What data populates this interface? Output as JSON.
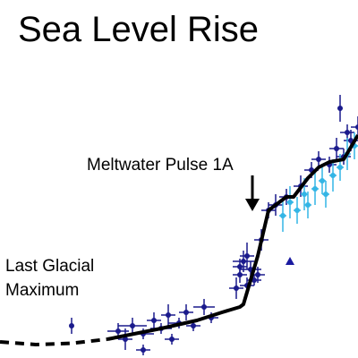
{
  "chart_data": {
    "type": "scatter",
    "title": "Sea Level Rise",
    "xlabel": "",
    "ylabel": "",
    "xlim": [
      0,
      100
    ],
    "ylim": [
      0,
      100
    ],
    "grid": false,
    "annotations": [
      "Meltwater Pulse 1A",
      "Last Glacial Maximum"
    ],
    "colors": {
      "curve": "#000000",
      "dark_points": "#1a1a8c",
      "light_points": "#33b5e5",
      "triangle": "#1a1aa0"
    },
    "curve_dashed": {
      "x": [
        0,
        10,
        20,
        30
      ],
      "y": [
        6,
        5,
        5.5,
        7
      ]
    },
    "curve_solid": {
      "x": [
        30,
        45,
        55,
        62,
        67,
        68,
        72,
        75,
        80,
        82,
        86,
        89,
        92,
        96,
        100
      ],
      "y": [
        7,
        11,
        14,
        17,
        19,
        20,
        38,
        55,
        60,
        60,
        67,
        71,
        73,
        74,
        83
      ]
    },
    "series": [
      {
        "color": "dark",
        "points": [
          {
            "x": 33,
            "y": 10,
            "ex": 3,
            "ey": 3
          },
          {
            "x": 35,
            "y": 7,
            "ex": 2,
            "ey": 4
          },
          {
            "x": 37,
            "y": 12,
            "ex": 4,
            "ey": 3
          },
          {
            "x": 40,
            "y": 9,
            "ex": 3,
            "ey": 2
          },
          {
            "x": 43,
            "y": 14,
            "ex": 2,
            "ey": 3
          },
          {
            "x": 45,
            "y": 11,
            "ex": 3,
            "ey": 2
          },
          {
            "x": 47,
            "y": 16,
            "ex": 2,
            "ey": 4
          },
          {
            "x": 50,
            "y": 13,
            "ex": 3,
            "ey": 2
          },
          {
            "x": 52,
            "y": 17,
            "ex": 2,
            "ey": 3
          },
          {
            "x": 54,
            "y": 12,
            "ex": 2,
            "ey": 2
          },
          {
            "x": 57,
            "y": 19,
            "ex": 3,
            "ey": 3
          },
          {
            "x": 59,
            "y": 15,
            "ex": 2,
            "ey": 2
          },
          {
            "x": 20,
            "y": 12,
            "ex": 0,
            "ey": 3
          },
          {
            "x": 48,
            "y": 7,
            "ex": 2,
            "ey": 2
          },
          {
            "x": 40,
            "y": 3,
            "ex": 2,
            "ey": 2
          },
          {
            "x": 66,
            "y": 26,
            "ex": 2,
            "ey": 4
          },
          {
            "x": 67,
            "y": 31,
            "ex": 2,
            "ey": 3
          },
          {
            "x": 68,
            "y": 36,
            "ex": 3,
            "ey": 4
          },
          {
            "x": 69,
            "y": 27,
            "ex": 2,
            "ey": 3
          },
          {
            "x": 70,
            "y": 33,
            "ex": 3,
            "ey": 3
          },
          {
            "x": 71,
            "y": 29,
            "ex": 2,
            "ey": 2
          },
          {
            "x": 69,
            "y": 38,
            "ex": 2,
            "ey": 5
          },
          {
            "x": 72,
            "y": 31,
            "ex": 2,
            "ey": 3
          },
          {
            "x": 73,
            "y": 44,
            "ex": 2,
            "ey": 4
          },
          {
            "x": 67,
            "y": 34,
            "ex": 2,
            "ey": 3
          },
          {
            "x": 75,
            "y": 55,
            "ex": 2,
            "ey": 3
          },
          {
            "x": 77,
            "y": 57,
            "ex": 2,
            "ey": 4
          },
          {
            "x": 80,
            "y": 60,
            "ex": 2,
            "ey": 3
          },
          {
            "x": 84,
            "y": 64,
            "ex": 2,
            "ey": 4
          },
          {
            "x": 87,
            "y": 70,
            "ex": 2,
            "ey": 3
          },
          {
            "x": 89,
            "y": 74,
            "ex": 2,
            "ey": 3
          },
          {
            "x": 92,
            "y": 72,
            "ex": 2,
            "ey": 3
          },
          {
            "x": 94,
            "y": 78,
            "ex": 2,
            "ey": 4
          },
          {
            "x": 96,
            "y": 75,
            "ex": 2,
            "ey": 3
          },
          {
            "x": 95,
            "y": 93,
            "ex": 0,
            "ey": 5
          },
          {
            "x": 98,
            "y": 81,
            "ex": 2,
            "ey": 4
          },
          {
            "x": 100,
            "y": 86,
            "ex": 2,
            "ey": 4
          },
          {
            "x": 97,
            "y": 84,
            "ex": 2,
            "ey": 3
          }
        ]
      },
      {
        "color": "light",
        "points": [
          {
            "x": 79,
            "y": 53,
            "ex": 1,
            "ey": 6
          },
          {
            "x": 81,
            "y": 58,
            "ex": 1,
            "ey": 6
          },
          {
            "x": 83,
            "y": 55,
            "ex": 1,
            "ey": 5
          },
          {
            "x": 85,
            "y": 61,
            "ex": 1,
            "ey": 6
          },
          {
            "x": 86,
            "y": 57,
            "ex": 1,
            "ey": 5
          },
          {
            "x": 88,
            "y": 63,
            "ex": 1,
            "ey": 6
          },
          {
            "x": 90,
            "y": 66,
            "ex": 1,
            "ey": 5
          },
          {
            "x": 91,
            "y": 61,
            "ex": 1,
            "ey": 5
          },
          {
            "x": 93,
            "y": 68,
            "ex": 1,
            "ey": 6
          },
          {
            "x": 95,
            "y": 71,
            "ex": 1,
            "ey": 5
          },
          {
            "x": 97,
            "y": 76,
            "ex": 1,
            "ey": 6
          },
          {
            "x": 99,
            "y": 79,
            "ex": 1,
            "ey": 5
          }
        ]
      }
    ],
    "triangle_marker": {
      "x": 81,
      "y": 36
    }
  }
}
